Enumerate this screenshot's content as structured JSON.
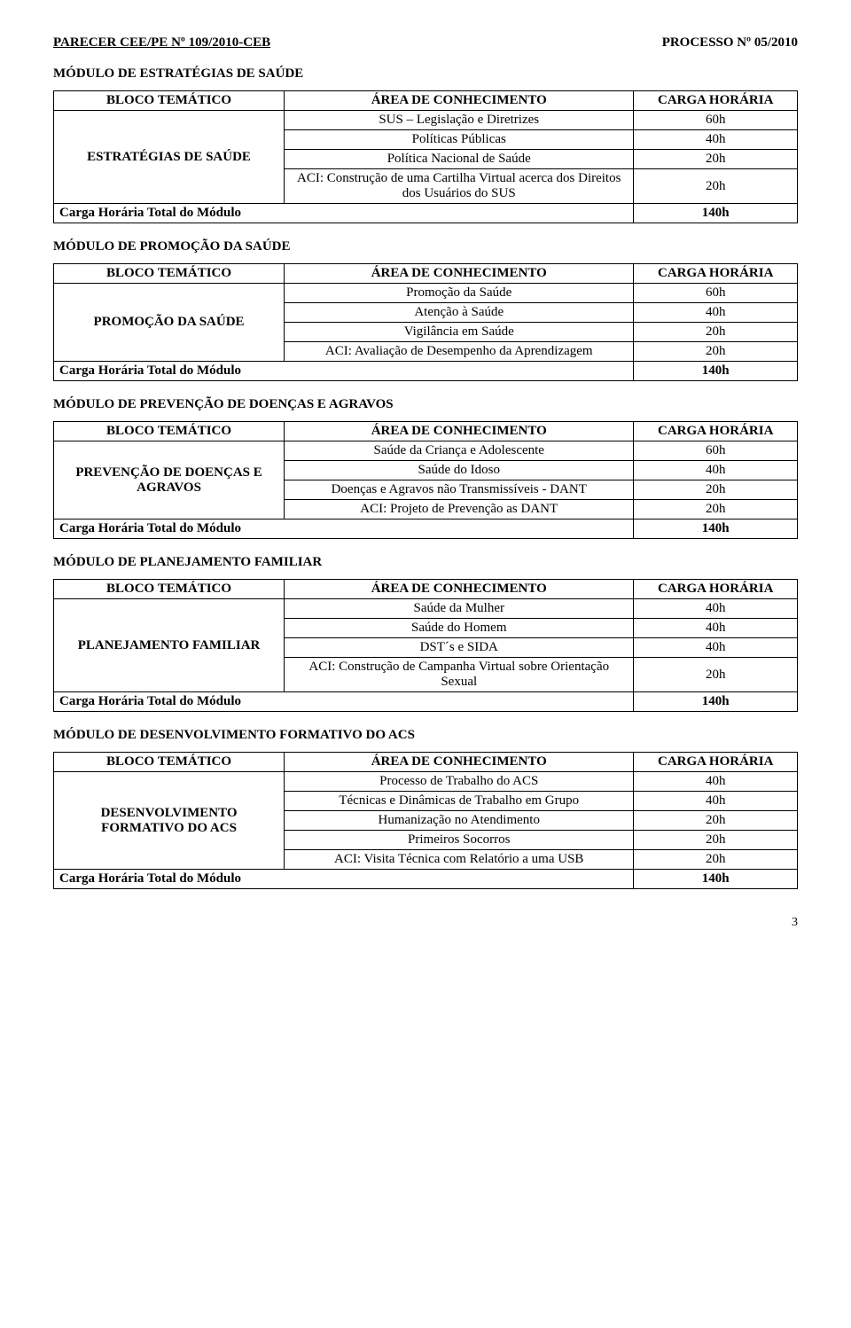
{
  "header": {
    "left": "PARECER CEE/PE Nº 109/2010-CEB",
    "right": "PROCESSO Nº 05/2010"
  },
  "th": {
    "bloco": "BLOCO TEMÁTICO",
    "area": "ÁREA DE CONHECIMENTO",
    "carga": "CARGA HORÁRIA"
  },
  "total_label": "Carga Horária Total do Módulo",
  "modules": [
    {
      "title": "MÓDULO DE ESTRATÉGIAS DE SAÚDE",
      "block": "ESTRATÉGIAS DE SAÚDE",
      "rows": [
        {
          "area": "SUS – Legislação e Diretrizes",
          "h": "60h"
        },
        {
          "area": "Políticas Públicas",
          "h": "40h"
        },
        {
          "area": "Política Nacional de Saúde",
          "h": "20h"
        },
        {
          "area": "ACI: Construção de uma Cartilha Virtual acerca dos Direitos dos Usuários do SUS",
          "h": "20h"
        }
      ],
      "total": "140h"
    },
    {
      "title": "MÓDULO DE PROMOÇÃO DA SAÚDE",
      "block": "PROMOÇÃO DA SAÚDE",
      "rows": [
        {
          "area": "Promoção da Saúde",
          "h": "60h"
        },
        {
          "area": "Atenção à Saúde",
          "h": "40h"
        },
        {
          "area": "Vigilância em Saúde",
          "h": "20h"
        },
        {
          "area": "ACI: Avaliação de Desempenho da Aprendizagem",
          "h": "20h"
        }
      ],
      "total": "140h"
    },
    {
      "title": "MÓDULO DE PREVENÇÃO DE DOENÇAS E AGRAVOS",
      "block": "PREVENÇÃO DE DOENÇAS E AGRAVOS",
      "rows": [
        {
          "area": "Saúde da Criança e Adolescente",
          "h": "60h"
        },
        {
          "area": "Saúde do Idoso",
          "h": "40h"
        },
        {
          "area": "Doenças e Agravos não Transmissíveis - DANT",
          "h": "20h"
        },
        {
          "area": "ACI: Projeto de Prevenção as DANT",
          "h": "20h"
        }
      ],
      "total": "140h"
    },
    {
      "title": "MÓDULO DE PLANEJAMENTO FAMILIAR",
      "block": "PLANEJAMENTO FAMILIAR",
      "rows": [
        {
          "area": "Saúde da Mulher",
          "h": "40h"
        },
        {
          "area": "Saúde do Homem",
          "h": "40h"
        },
        {
          "area": "DST´s e SIDA",
          "h": "40h"
        },
        {
          "area": "ACI: Construção de Campanha Virtual sobre Orientação Sexual",
          "h": "20h"
        }
      ],
      "total": "140h"
    },
    {
      "title": "MÓDULO DE DESENVOLVIMENTO FORMATIVO DO ACS",
      "block": "DESENVOLVIMENTO FORMATIVO DO ACS",
      "rows": [
        {
          "area": "Processo de Trabalho do ACS",
          "h": "40h"
        },
        {
          "area": "Técnicas e Dinâmicas de Trabalho em Grupo",
          "h": "40h"
        },
        {
          "area": "Humanização no Atendimento",
          "h": "20h"
        },
        {
          "area": "Primeiros  Socorros",
          "h": "20h"
        },
        {
          "area": "ACI: Visita Técnica com Relatório a uma USB",
          "h": "20h"
        }
      ],
      "total": "140h"
    }
  ],
  "pagenum": "3"
}
